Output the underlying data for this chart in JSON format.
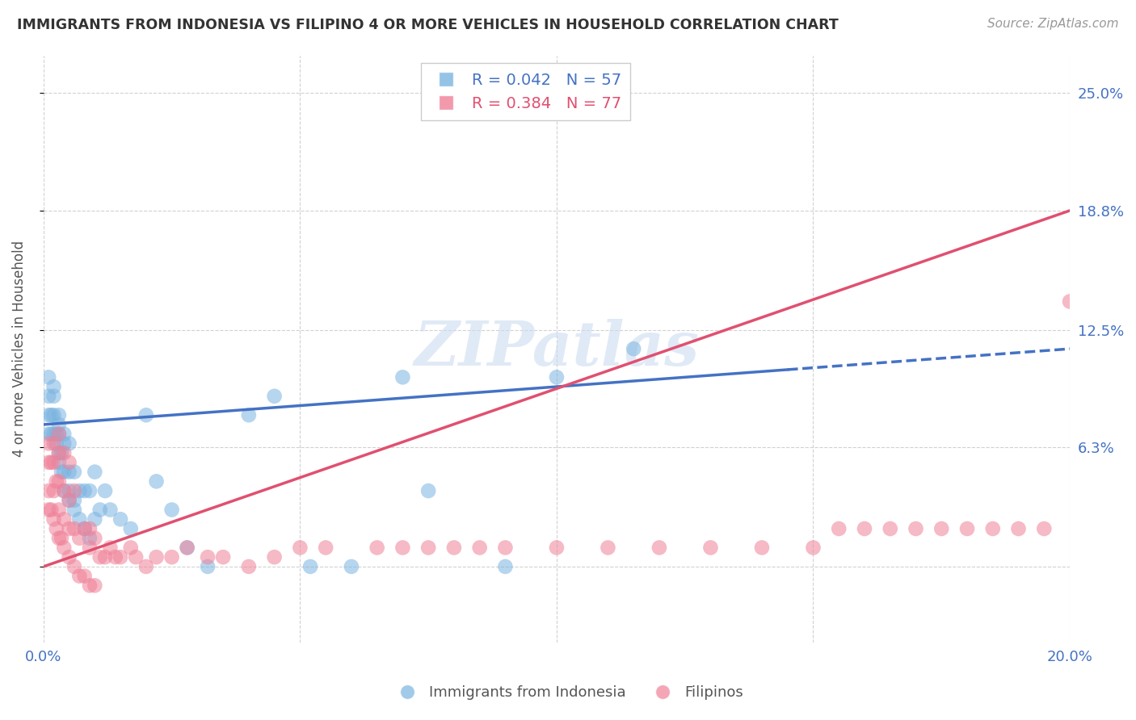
{
  "title": "IMMIGRANTS FROM INDONESIA VS FILIPINO 4 OR MORE VEHICLES IN HOUSEHOLD CORRELATION CHART",
  "source": "Source: ZipAtlas.com",
  "ylabel": "4 or more Vehicles in Household",
  "xlim": [
    0.0,
    0.2
  ],
  "ylim": [
    -0.04,
    0.27
  ],
  "ytick_values": [
    0.0,
    0.063,
    0.125,
    0.188,
    0.25
  ],
  "ytick_labels": [
    "",
    "6.3%",
    "12.5%",
    "18.8%",
    "25.0%"
  ],
  "xtick_positions": [
    0.0,
    0.05,
    0.1,
    0.15,
    0.2
  ],
  "xtick_labels": [
    "0.0%",
    "",
    "",
    "",
    "20.0%"
  ],
  "grid_color": "#cccccc",
  "background_color": "#ffffff",
  "watermark": "ZIPatlas",
  "legend_label1": "Immigrants from Indonesia",
  "legend_label2": "Filipinos",
  "blue_color": "#7ab4e0",
  "pink_color": "#f08098",
  "blue_line_color": "#4472c4",
  "pink_line_color": "#e05070",
  "axis_label_color": "#4472c4",
  "blue_scatter_x": [
    0.001,
    0.001,
    0.001,
    0.001,
    0.0015,
    0.0015,
    0.002,
    0.002,
    0.002,
    0.002,
    0.0025,
    0.0025,
    0.003,
    0.003,
    0.003,
    0.003,
    0.003,
    0.0035,
    0.0035,
    0.004,
    0.004,
    0.004,
    0.004,
    0.005,
    0.005,
    0.005,
    0.005,
    0.006,
    0.006,
    0.006,
    0.007,
    0.007,
    0.008,
    0.008,
    0.009,
    0.009,
    0.01,
    0.01,
    0.011,
    0.012,
    0.013,
    0.015,
    0.017,
    0.02,
    0.022,
    0.025,
    0.028,
    0.032,
    0.04,
    0.045,
    0.052,
    0.06,
    0.07,
    0.075,
    0.09,
    0.1,
    0.115
  ],
  "blue_scatter_y": [
    0.07,
    0.08,
    0.09,
    0.1,
    0.07,
    0.08,
    0.07,
    0.08,
    0.09,
    0.095,
    0.065,
    0.07,
    0.055,
    0.06,
    0.07,
    0.075,
    0.08,
    0.05,
    0.06,
    0.04,
    0.05,
    0.065,
    0.07,
    0.035,
    0.04,
    0.05,
    0.065,
    0.03,
    0.035,
    0.05,
    0.025,
    0.04,
    0.02,
    0.04,
    0.015,
    0.04,
    0.025,
    0.05,
    0.03,
    0.04,
    0.03,
    0.025,
    0.02,
    0.08,
    0.045,
    0.03,
    0.01,
    0.0,
    0.08,
    0.09,
    0.0,
    0.0,
    0.1,
    0.04,
    0.0,
    0.1,
    0.115
  ],
  "pink_scatter_x": [
    0.001,
    0.001,
    0.001,
    0.001,
    0.0015,
    0.0015,
    0.002,
    0.002,
    0.002,
    0.002,
    0.0025,
    0.0025,
    0.003,
    0.003,
    0.003,
    0.003,
    0.003,
    0.0035,
    0.004,
    0.004,
    0.004,
    0.004,
    0.005,
    0.005,
    0.005,
    0.005,
    0.006,
    0.006,
    0.006,
    0.007,
    0.007,
    0.008,
    0.008,
    0.009,
    0.009,
    0.009,
    0.01,
    0.01,
    0.011,
    0.012,
    0.013,
    0.014,
    0.015,
    0.017,
    0.018,
    0.02,
    0.022,
    0.025,
    0.028,
    0.032,
    0.035,
    0.04,
    0.045,
    0.05,
    0.055,
    0.065,
    0.07,
    0.075,
    0.08,
    0.085,
    0.09,
    0.1,
    0.11,
    0.12,
    0.13,
    0.14,
    0.15,
    0.155,
    0.16,
    0.165,
    0.17,
    0.175,
    0.18,
    0.185,
    0.19,
    0.195,
    0.2
  ],
  "pink_scatter_y": [
    0.03,
    0.04,
    0.055,
    0.065,
    0.03,
    0.055,
    0.025,
    0.04,
    0.055,
    0.065,
    0.02,
    0.045,
    0.015,
    0.03,
    0.045,
    0.06,
    0.07,
    0.015,
    0.01,
    0.025,
    0.04,
    0.06,
    0.005,
    0.02,
    0.035,
    0.055,
    0.0,
    0.02,
    0.04,
    -0.005,
    0.015,
    -0.005,
    0.02,
    -0.01,
    0.01,
    0.02,
    -0.01,
    0.015,
    0.005,
    0.005,
    0.01,
    0.005,
    0.005,
    0.01,
    0.005,
    0.0,
    0.005,
    0.005,
    0.01,
    0.005,
    0.005,
    0.0,
    0.005,
    0.01,
    0.01,
    0.01,
    0.01,
    0.01,
    0.01,
    0.01,
    0.01,
    0.01,
    0.01,
    0.01,
    0.01,
    0.01,
    0.01,
    0.02,
    0.02,
    0.02,
    0.02,
    0.02,
    0.02,
    0.02,
    0.02,
    0.02,
    0.14
  ],
  "blue_line_y_start": 0.075,
  "blue_line_y_end": 0.115,
  "blue_line_dash_start": 0.145,
  "pink_line_y_start": 0.0,
  "pink_line_y_end": 0.188
}
